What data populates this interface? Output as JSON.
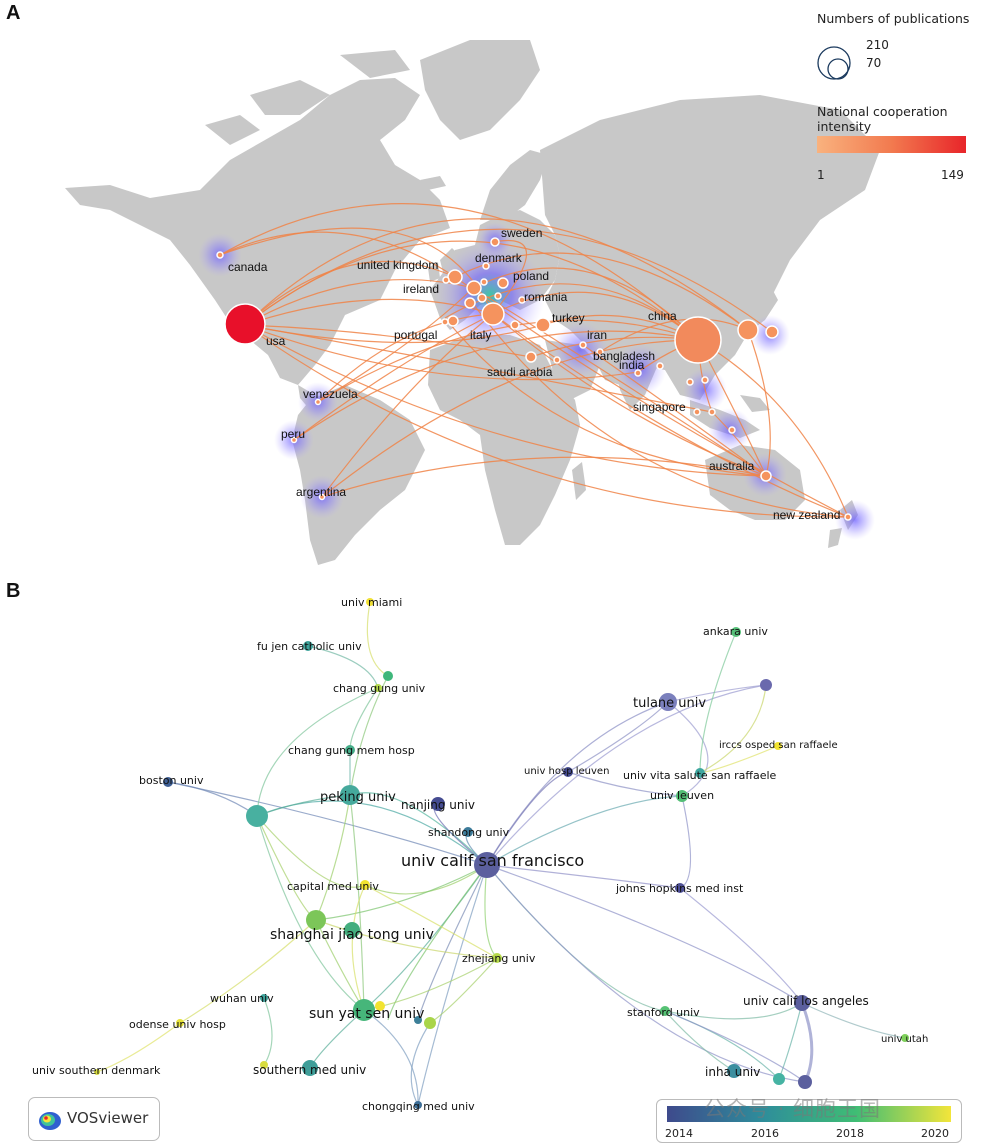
{
  "panels": {
    "a": "A",
    "b": "B"
  },
  "legend_a": {
    "size_title": "Numbers of publications",
    "size_values": [
      "210",
      "70"
    ],
    "intensity_title": "National cooperation intensity",
    "intensity_min": "1",
    "intensity_max": "149",
    "gradient": [
      "#f9b27e",
      "#f27a4f",
      "#e8252a"
    ]
  },
  "countries": [
    {
      "name": "usa",
      "label": "usa"
    },
    {
      "name": "canada",
      "label": "canada"
    },
    {
      "name": "venezuela",
      "label": "venezuela"
    },
    {
      "name": "peru",
      "label": "peru"
    },
    {
      "name": "argentina",
      "label": "argentina"
    },
    {
      "name": "united-kingdom",
      "label": "united kingdom"
    },
    {
      "name": "ireland",
      "label": "ireland"
    },
    {
      "name": "portugal",
      "label": "portugal"
    },
    {
      "name": "italy",
      "label": "italy"
    },
    {
      "name": "sweden",
      "label": "sweden"
    },
    {
      "name": "denmark",
      "label": "denmark"
    },
    {
      "name": "poland",
      "label": "poland"
    },
    {
      "name": "romania",
      "label": "romania"
    },
    {
      "name": "turkey",
      "label": "turkey"
    },
    {
      "name": "iran",
      "label": "iran"
    },
    {
      "name": "saudi-arabia",
      "label": "saudi arabia"
    },
    {
      "name": "bangladesh",
      "label": "bangladesh"
    },
    {
      "name": "india",
      "label": "india"
    },
    {
      "name": "china",
      "label": "china"
    },
    {
      "name": "singapore",
      "label": "singapore"
    },
    {
      "name": "australia",
      "label": "australia"
    },
    {
      "name": "new-zealand",
      "label": "new zealand"
    }
  ],
  "network": {
    "nodes": [
      {
        "label": "univ miami"
      },
      {
        "label": "fu jen catholic univ"
      },
      {
        "label": "chang gung univ"
      },
      {
        "label": "chang gung mem hosp"
      },
      {
        "label": "boston univ"
      },
      {
        "label": "peking univ"
      },
      {
        "label": "nanjing univ"
      },
      {
        "label": "shandong univ"
      },
      {
        "label": "univ calif san francisco"
      },
      {
        "label": "capital med univ"
      },
      {
        "label": "shanghai jiao tong univ"
      },
      {
        "label": "zhejiang univ"
      },
      {
        "label": "wuhan univ"
      },
      {
        "label": "odense univ hosp"
      },
      {
        "label": "univ southern denmark"
      },
      {
        "label": "sun yat sen univ"
      },
      {
        "label": "southern med univ"
      },
      {
        "label": "chongqing med univ"
      },
      {
        "label": "ankara univ"
      },
      {
        "label": "tulane univ"
      },
      {
        "label": "irccs osped san raffaele"
      },
      {
        "label": "univ hosp leuven"
      },
      {
        "label": "univ vita salute san raffaele"
      },
      {
        "label": "univ leuven"
      },
      {
        "label": "johns hopkins med inst"
      },
      {
        "label": "univ calif los angeles"
      },
      {
        "label": "stanford univ"
      },
      {
        "label": "univ utah"
      },
      {
        "label": "inha univ"
      }
    ]
  },
  "colorbar": {
    "ticks": [
      "2014",
      "2016",
      "2018",
      "2020"
    ],
    "gradient": [
      "#3e4a8c",
      "#2e8d9b",
      "#3fbd74",
      "#f3e53a"
    ]
  },
  "brand": {
    "name": "VOSviewer"
  },
  "watermark": "公众号 · 细胞王国"
}
